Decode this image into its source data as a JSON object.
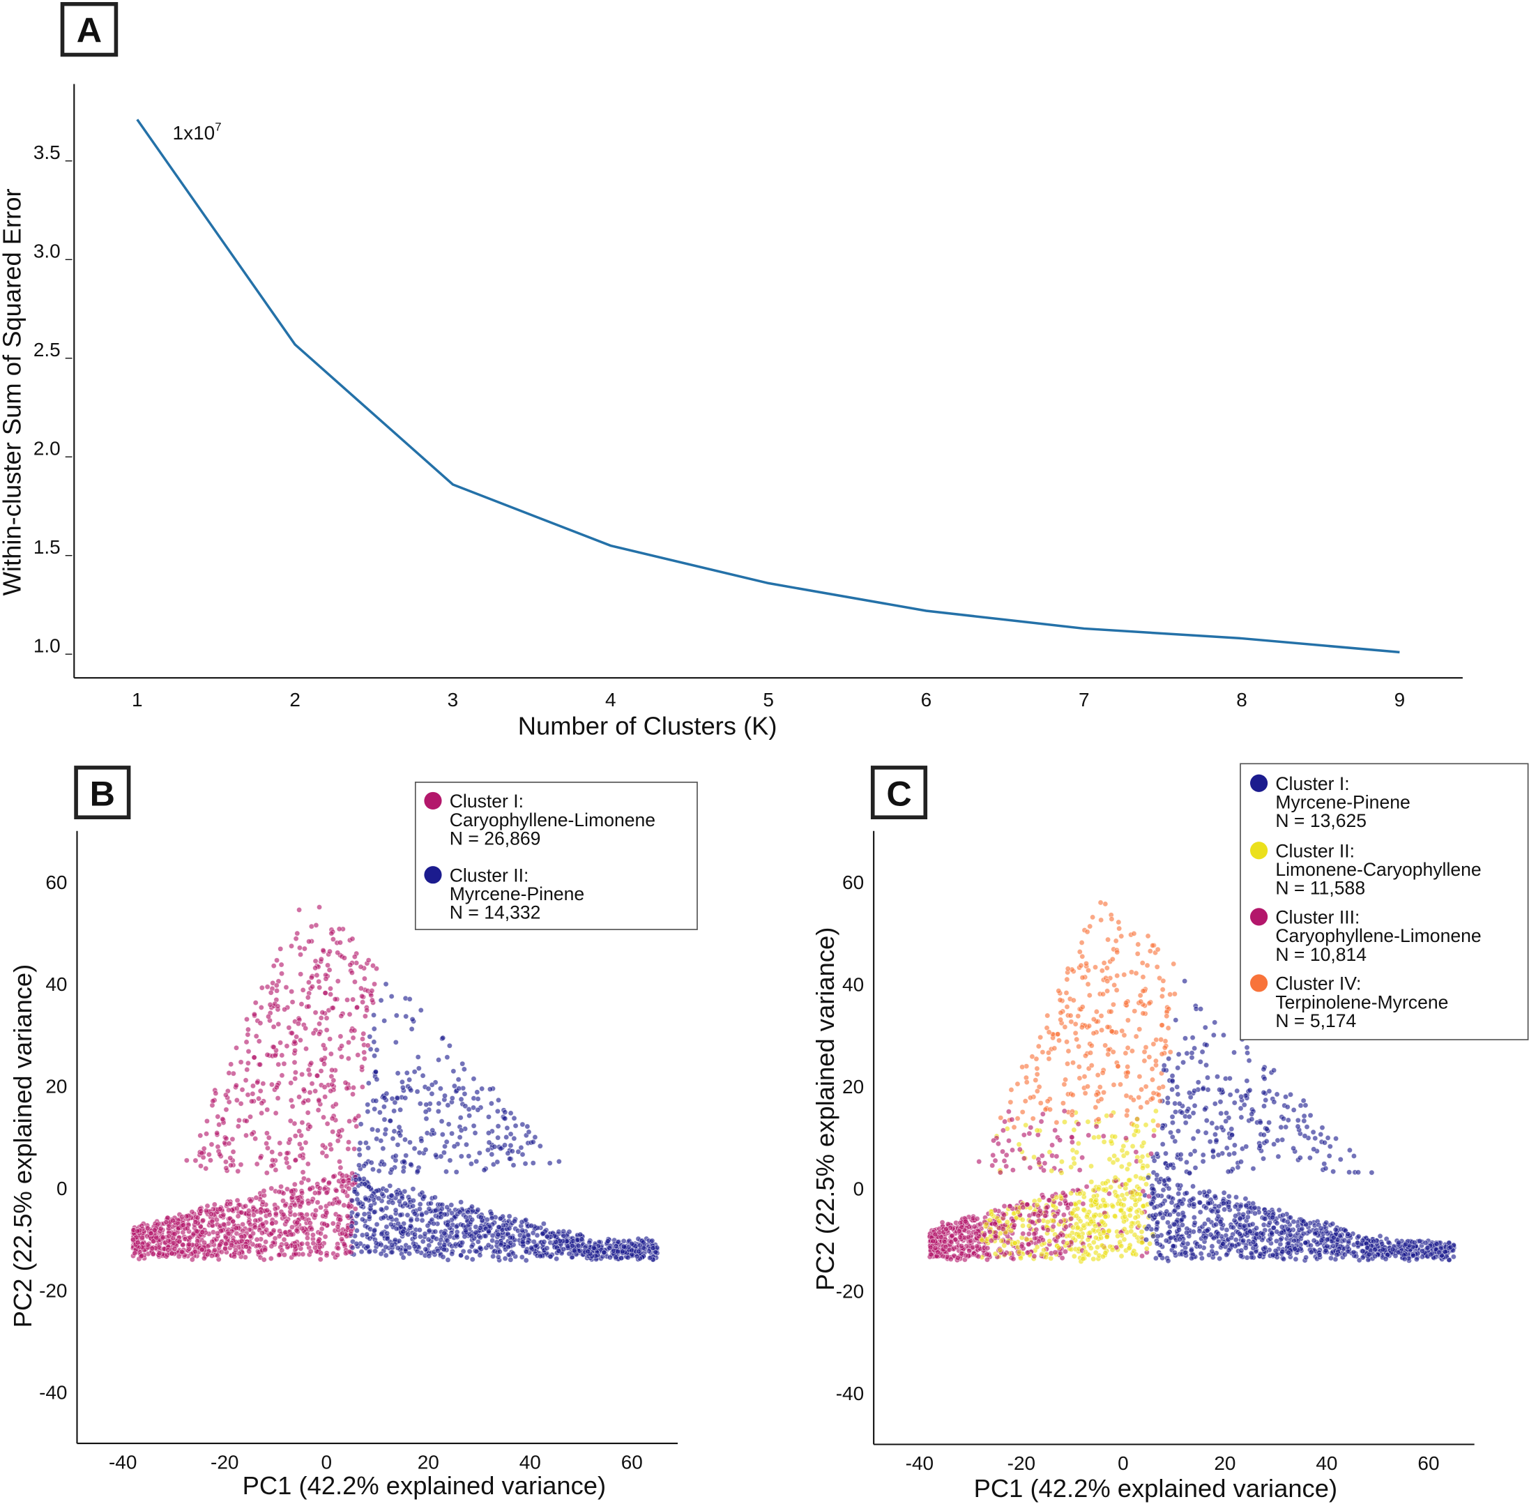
{
  "panels": {
    "a": "A",
    "b": "B",
    "c": "C"
  },
  "chart_data": [
    {
      "panel": "A",
      "type": "line",
      "x": [
        1,
        2,
        3,
        4,
        5,
        6,
        7,
        8,
        9
      ],
      "y": [
        3.7,
        2.56,
        1.85,
        1.54,
        1.35,
        1.21,
        1.12,
        1.07,
        1.0
      ],
      "xlabel": "Number of Clusters (K)",
      "ylabel": "Within-cluster Sum of Squared Error",
      "scale_note": "1x10",
      "scale_exp": "7",
      "xticks": [
        "1",
        "2",
        "3",
        "4",
        "5",
        "6",
        "7",
        "8",
        "9"
      ],
      "yticks": [
        "1.0",
        "1.5",
        "2.0",
        "2.5",
        "3.0",
        "3.5"
      ],
      "xlim": [
        0.6,
        9.4
      ],
      "ylim": [
        0.87,
        3.88
      ],
      "grid": false,
      "color": "#2471a8"
    },
    {
      "panel": "B",
      "type": "scatter",
      "xlabel": "PC1 (42.2% explained variance)",
      "ylabel": "PC2 (22.5% explained variance)",
      "xticks": [
        "-40",
        "-20",
        "0",
        "20",
        "40",
        "60"
      ],
      "yticks": [
        "60",
        "40",
        "20",
        "0",
        "-20",
        "-40"
      ],
      "xlim": [
        -49,
        69
      ],
      "ylim": [
        -50,
        70
      ],
      "grid": false,
      "legend_position": "top-right",
      "series": [
        {
          "name": "Cluster I:",
          "profile": "Caryophyllene-Limonene",
          "n": "N = 26,869",
          "color": "#b3176b"
        },
        {
          "name": "Cluster II:",
          "profile": "Myrcene-Pinene",
          "n": "N = 14,332",
          "color": "#1b1b8e"
        }
      ]
    },
    {
      "panel": "C",
      "type": "scatter",
      "xlabel": "PC1 (42.2% explained variance)",
      "ylabel": "PC2 (22.5% explained variance)",
      "xticks": [
        "-40",
        "-20",
        "0",
        "20",
        "40",
        "60"
      ],
      "yticks": [
        "60",
        "40",
        "20",
        "0",
        "-20",
        "-40"
      ],
      "xlim": [
        -49,
        69
      ],
      "ylim": [
        -50,
        70
      ],
      "grid": false,
      "legend_position": "top-right",
      "series": [
        {
          "name": "Cluster I:",
          "profile": "Myrcene-Pinene",
          "n": "N = 13,625",
          "color": "#1b1b8e"
        },
        {
          "name": "Cluster II:",
          "profile": "Limonene-Caryophyllene",
          "n": "N = 11,588",
          "color": "#ebe01c"
        },
        {
          "name": "Cluster III:",
          "profile": "Caryophyllene-Limonene",
          "n": "N = 10,814",
          "color": "#b3176b"
        },
        {
          "name": "Cluster IV:",
          "profile": "Terpinolene-Myrcene",
          "n": "N = 5,174",
          "color": "#f8733a"
        }
      ]
    }
  ]
}
